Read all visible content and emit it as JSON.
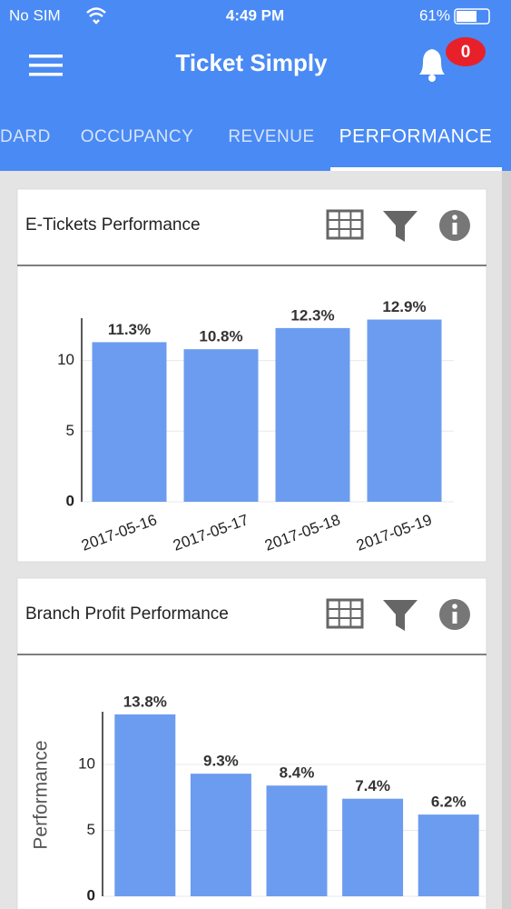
{
  "status_bar": {
    "carrier": "No SIM",
    "time": "4:49 PM",
    "battery": "61%"
  },
  "header": {
    "title": "Ticket Simply",
    "badge": "0"
  },
  "tabs": [
    "DARD",
    "OCCUPANCY",
    "REVENUE",
    "PERFORMANCE"
  ],
  "chart_data": [
    {
      "type": "bar",
      "title": "E-Tickets Performance",
      "categories": [
        "2017-05-16",
        "2017-05-17",
        "2017-05-18",
        "2017-05-19"
      ],
      "values": [
        11.3,
        10.8,
        12.3,
        12.9
      ],
      "value_labels": [
        "11.3%",
        "10.8%",
        "12.3%",
        "12.9%"
      ],
      "color": "#6c9cf0",
      "ylim": [
        0,
        13
      ],
      "yticks": [
        0,
        5,
        10
      ],
      "grid": true
    },
    {
      "type": "bar",
      "title": "Branch Profit Performance",
      "y_label": "Performance",
      "categories": [
        null,
        null,
        null,
        null,
        null
      ],
      "values": [
        13.8,
        9.3,
        8.4,
        7.4,
        6.2
      ],
      "value_labels": [
        "13.8%",
        "9.3%",
        "8.4%",
        "7.4%",
        "6.2%"
      ],
      "color": "#6c9cf0",
      "ylim": [
        0,
        14
      ],
      "yticks": [
        0,
        5,
        10
      ],
      "grid": true
    }
  ]
}
